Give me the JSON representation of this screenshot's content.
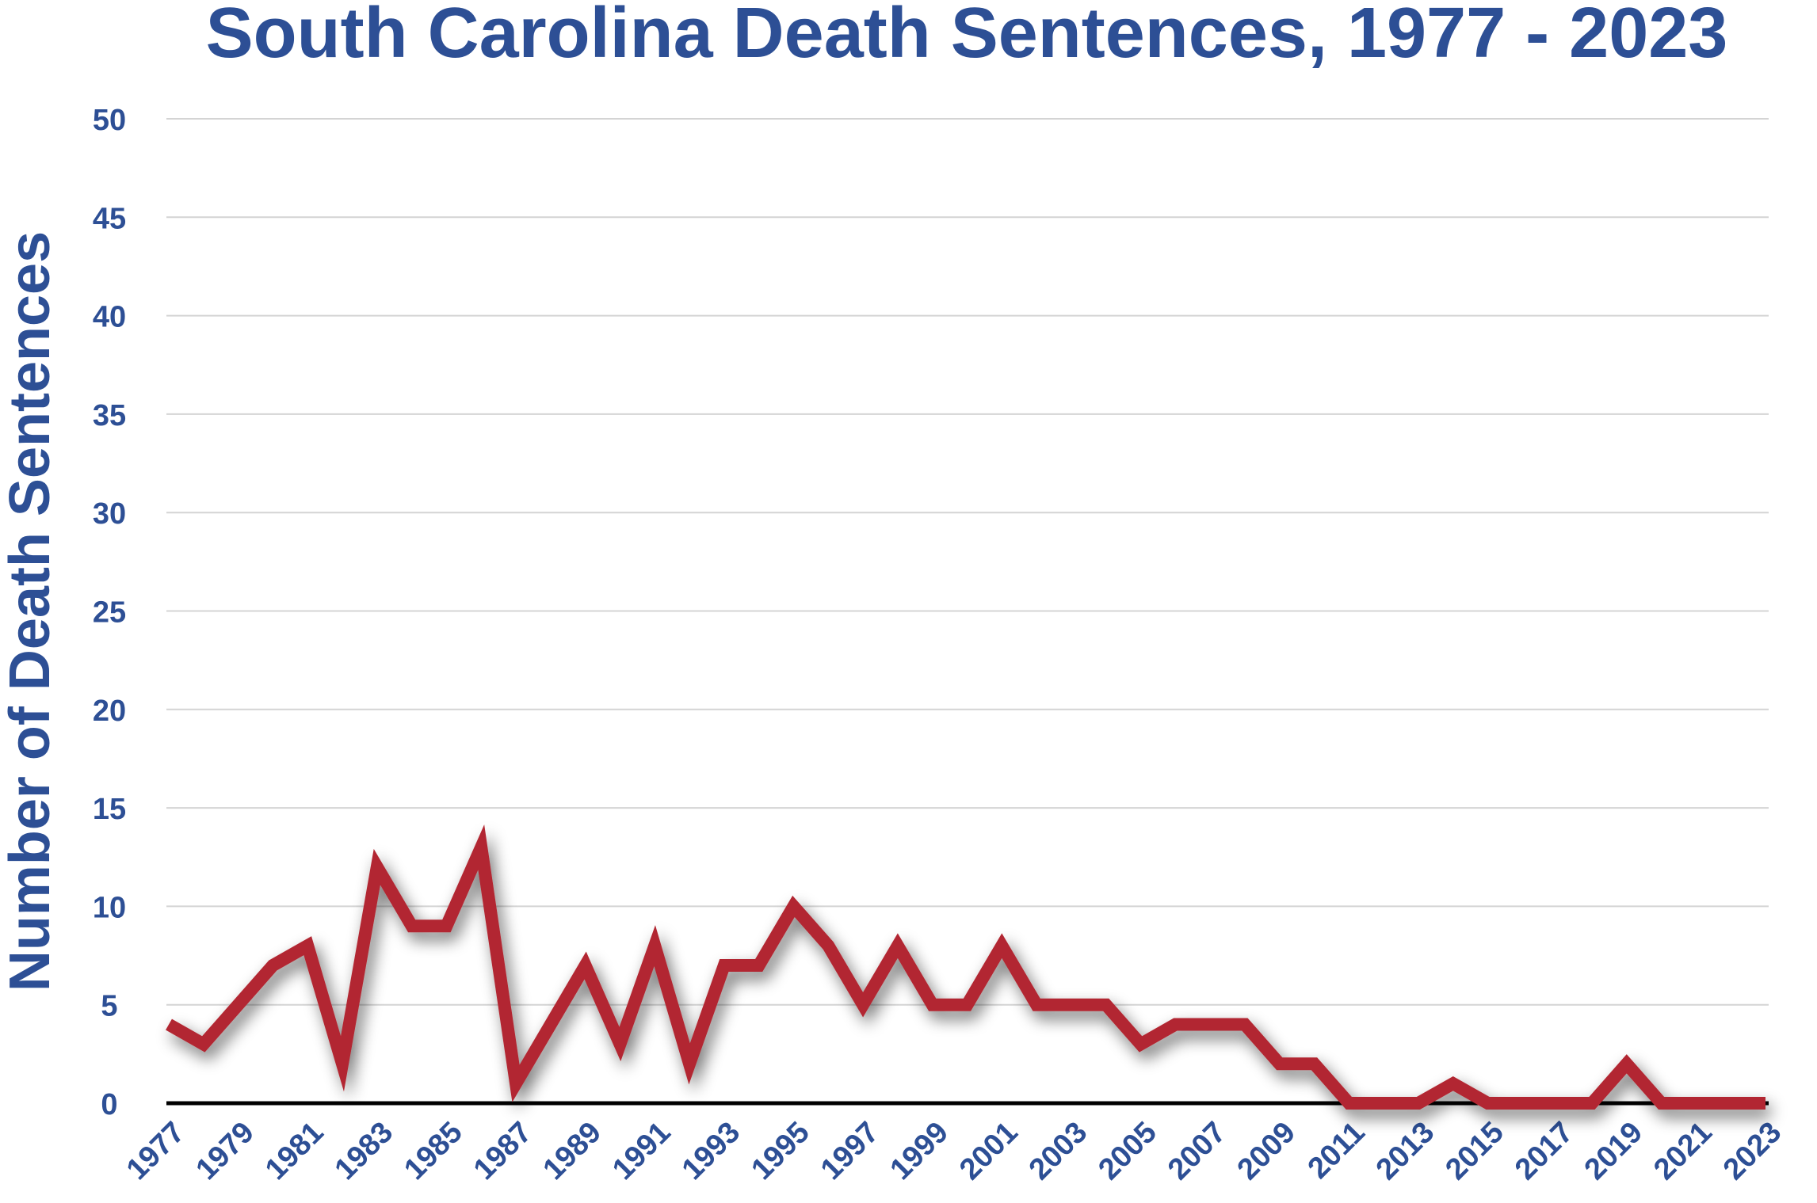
{
  "chart_data": {
    "type": "line",
    "title": "South Carolina Death Sentences, 1977 - 2023",
    "xlabel": "",
    "ylabel": "Number of Death Sentences",
    "ylim": [
      0,
      50
    ],
    "yticks": [
      0,
      5,
      10,
      15,
      20,
      25,
      30,
      35,
      40,
      45,
      50
    ],
    "grid": true,
    "x": [
      1977,
      1978,
      1979,
      1980,
      1981,
      1982,
      1983,
      1984,
      1985,
      1986,
      1987,
      1988,
      1989,
      1990,
      1991,
      1992,
      1993,
      1994,
      1995,
      1996,
      1997,
      1998,
      1999,
      2000,
      2001,
      2002,
      2003,
      2004,
      2005,
      2006,
      2007,
      2008,
      2009,
      2010,
      2011,
      2012,
      2013,
      2014,
      2015,
      2016,
      2017,
      2018,
      2019,
      2020,
      2021,
      2022,
      2023
    ],
    "xtick_labels": [
      "1977",
      "1979",
      "1981",
      "1983",
      "1985",
      "1987",
      "1989",
      "1991",
      "1993",
      "1995",
      "1997",
      "1999",
      "2001",
      "2003",
      "2005",
      "2007",
      "2009",
      "2011",
      "2013",
      "2015",
      "2017",
      "2019",
      "2021",
      "2023"
    ],
    "series": [
      {
        "name": "Death Sentences",
        "color": "#b22830",
        "values": [
          4,
          3,
          5,
          7,
          8,
          2,
          12,
          9,
          9,
          13,
          1,
          4,
          7,
          3,
          8,
          2,
          7,
          7,
          10,
          8,
          5,
          8,
          5,
          5,
          8,
          5,
          5,
          5,
          3,
          4,
          4,
          4,
          2,
          2,
          0,
          0,
          0,
          1,
          0,
          0,
          0,
          0,
          2,
          0,
          0,
          0,
          0
        ]
      }
    ]
  }
}
